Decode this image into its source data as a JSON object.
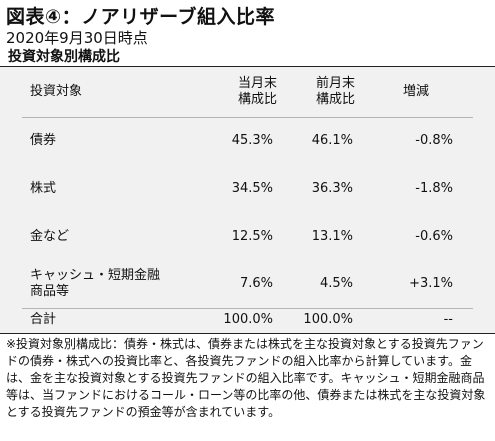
{
  "title": "図表④：ノアリザーブ組入比率",
  "date": "2020年9月30日時点",
  "subtitle": "投資対象別構成比",
  "table": {
    "headers": {
      "label": "投資対象",
      "current_line1": "当月末",
      "current_line2": "構成比",
      "previous_line1": "前月末",
      "previous_line2": "構成比",
      "change": "増減"
    },
    "rows": [
      {
        "label": "債券",
        "current": "45.3%",
        "previous": "46.1%",
        "change": "-0.8%"
      },
      {
        "label": "株式",
        "current": "34.5%",
        "previous": "36.3%",
        "change": "-1.8%"
      },
      {
        "label": "金など",
        "current": "12.5%",
        "previous": "13.1%",
        "change": "-0.6%"
      },
      {
        "label_line1": "キャッシュ・短期金融",
        "label_line2": "商品等",
        "current": "7.6%",
        "previous": "4.5%",
        "change": "+3.1%"
      }
    ],
    "total": {
      "label": "合計",
      "current": "100.0%",
      "previous": "100.0%",
      "change": "--"
    }
  },
  "note": "※投資対象別構成比：債券・株式は、債券または株式を主な投資対象とする投資先ファンドの債券・株式への投資比率と、各投資先ファンドの組入比率から計算しています。金は、金を主な投資対象とする投資先ファンドの組入比率です。キャッシュ・短期金融商品等は、当ファンドにおけるコール・ローン等の比率の他、債券または株式を主な投資対象とする投資先ファンドの預金等が含まれています。",
  "colors": {
    "table_background": "#f1f1f1",
    "border": "#222222",
    "divider": "#b5b5b5"
  }
}
